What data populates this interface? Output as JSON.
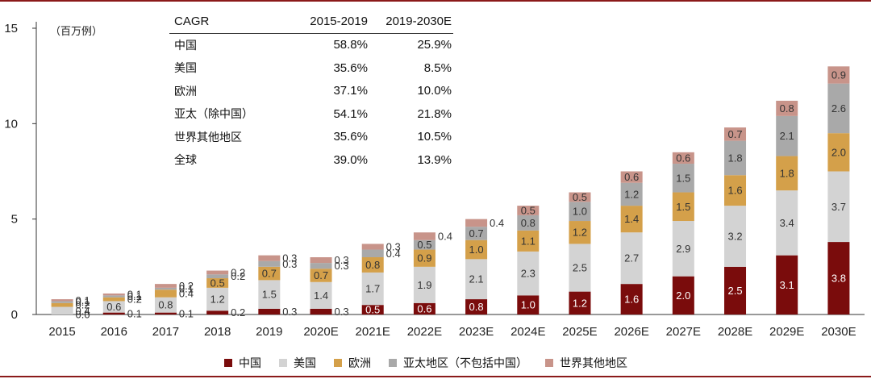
{
  "unit_label": "（百万例）",
  "cagr_table": {
    "headers": [
      "CAGR",
      "2015-2019",
      "2019-2030E"
    ],
    "rows": [
      [
        "中国",
        "58.8%",
        "25.9%"
      ],
      [
        "美国",
        "35.6%",
        "8.5%"
      ],
      [
        "欧洲",
        "37.1%",
        "10.0%"
      ],
      [
        "亚太（除中国）",
        "54.1%",
        "21.8%"
      ],
      [
        "世界其他地区",
        "35.6%",
        "10.5%"
      ],
      [
        "全球",
        "39.0%",
        "13.9%"
      ]
    ]
  },
  "legend": [
    {
      "name": "中国",
      "color": "#7A0C0C"
    },
    {
      "name": "美国",
      "color": "#D3D3D3"
    },
    {
      "name": "欧洲",
      "color": "#D4A04A"
    },
    {
      "name": "亚太地区（不包括中国）",
      "color": "#A9A9A9"
    },
    {
      "name": "世界其他地区",
      "color": "#C8948A"
    }
  ],
  "chart_data": {
    "type": "bar",
    "stacked": true,
    "categories": [
      "2015",
      "2016",
      "2017",
      "2018",
      "2019",
      "2020E",
      "2021E",
      "2022E",
      "2023E",
      "2024E",
      "2025E",
      "2026E",
      "2027E",
      "2028E",
      "2029E",
      "2030E"
    ],
    "ylim": [
      0,
      15
    ],
    "yticks": [
      0,
      5,
      10,
      15
    ],
    "series": [
      {
        "name": "中国",
        "color": "#7A0C0C",
        "values": [
          0.0,
          0.1,
          0.1,
          0.2,
          0.3,
          0.3,
          0.5,
          0.6,
          0.8,
          1.0,
          1.2,
          1.6,
          2.0,
          2.5,
          3.1,
          3.8
        ]
      },
      {
        "name": "美国",
        "color": "#D3D3D3",
        "values": [
          0.4,
          0.6,
          0.8,
          1.2,
          1.5,
          1.4,
          1.7,
          1.9,
          2.1,
          2.3,
          2.5,
          2.7,
          2.9,
          3.2,
          3.4,
          3.7
        ]
      },
      {
        "name": "欧洲",
        "color": "#D4A04A",
        "values": [
          0.2,
          0.2,
          0.4,
          0.5,
          0.7,
          0.7,
          0.8,
          0.9,
          1.0,
          1.1,
          1.2,
          1.4,
          1.5,
          1.6,
          1.8,
          2.0
        ]
      },
      {
        "name": "亚太地区（不包括中国）",
        "color": "#A9A9A9",
        "values": [
          0.1,
          0.1,
          0.1,
          0.2,
          0.3,
          0.3,
          0.4,
          0.5,
          0.7,
          0.8,
          1.0,
          1.2,
          1.5,
          1.8,
          2.1,
          2.6
        ]
      },
      {
        "name": "世界其他地区",
        "color": "#C8948A",
        "values": [
          0.1,
          0.1,
          0.2,
          0.2,
          0.3,
          0.3,
          0.3,
          0.4,
          0.4,
          0.5,
          0.5,
          0.6,
          0.6,
          0.7,
          0.8,
          0.9
        ]
      }
    ]
  }
}
